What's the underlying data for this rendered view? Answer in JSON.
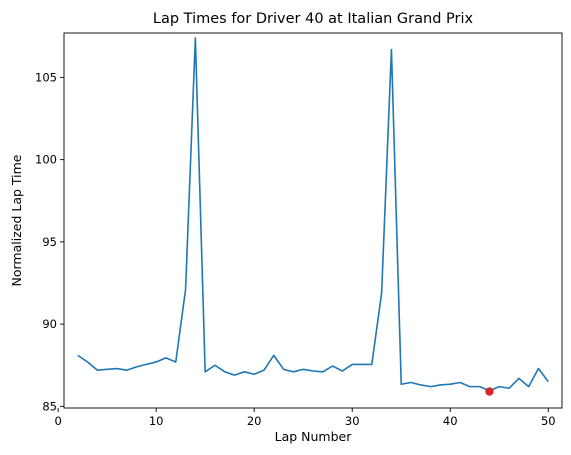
{
  "chart_data": {
    "type": "line",
    "title": "Lap Times for Driver 40 at Italian Grand Prix",
    "xlabel": "Lap Number",
    "ylabel": "Normalized Lap Time",
    "xlim": [
      0.6,
      51.4
    ],
    "ylim": [
      84.9,
      107.7
    ],
    "xticks": [
      0,
      10,
      20,
      30,
      40,
      50
    ],
    "yticks": [
      85,
      90,
      95,
      100,
      105
    ],
    "grid": false,
    "series": [
      {
        "color": "#1f77b4",
        "x": [
          2,
          3,
          4,
          5,
          6,
          7,
          8,
          9,
          10,
          11,
          12,
          13,
          14,
          15,
          16,
          17,
          18,
          19,
          20,
          21,
          22,
          23,
          24,
          25,
          26,
          27,
          28,
          29,
          30,
          31,
          32,
          33,
          34,
          35,
          36,
          37,
          38,
          39,
          40,
          41,
          42,
          43,
          44,
          45,
          46,
          47,
          48,
          49,
          50
        ],
        "y": [
          88.1,
          87.7,
          87.2,
          87.25,
          87.3,
          87.2,
          87.4,
          87.55,
          87.7,
          87.95,
          87.7,
          92.1,
          107.4,
          87.1,
          87.5,
          87.1,
          86.9,
          87.1,
          86.95,
          87.2,
          88.1,
          87.25,
          87.1,
          87.25,
          87.15,
          87.1,
          87.45,
          87.15,
          87.55,
          87.55,
          87.55,
          91.9,
          106.7,
          86.35,
          86.45,
          86.3,
          86.2,
          86.3,
          86.35,
          86.45,
          86.2,
          86.2,
          85.95,
          86.2,
          86.1,
          86.7,
          86.2,
          87.3,
          86.5
        ]
      }
    ],
    "highlight": {
      "x": 44,
      "y": 85.9,
      "color": "#d62728"
    }
  }
}
